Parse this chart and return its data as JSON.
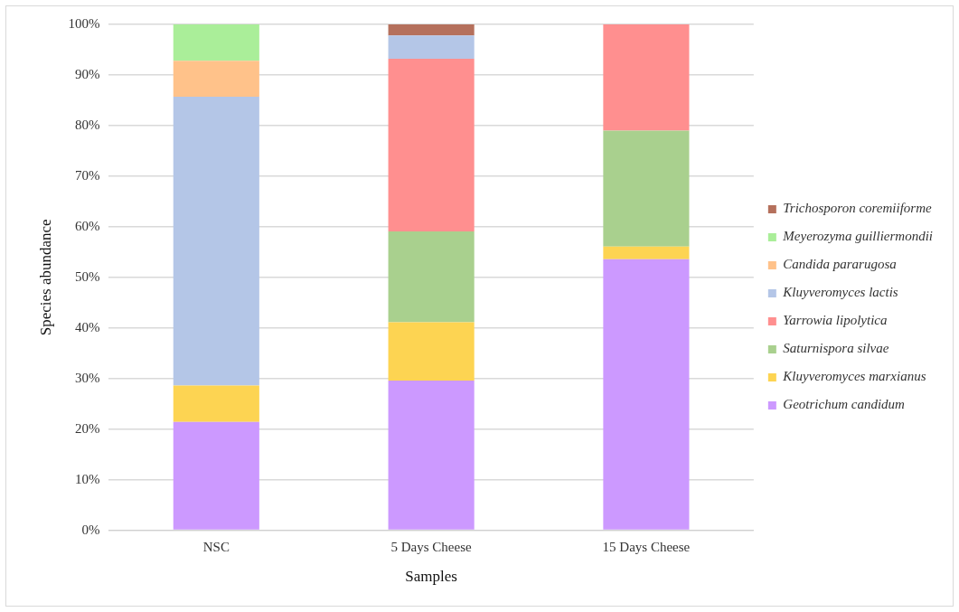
{
  "chart_data": {
    "type": "bar",
    "stacked": true,
    "xlabel": "Samples",
    "ylabel": "Species abundance",
    "categories": [
      "NSC",
      "5 Days Cheese",
      "15 Days Cheese"
    ],
    "series": [
      {
        "name": "Geotrichum candidum",
        "color": "#cc99ff",
        "values": [
          21.4,
          29.6,
          53.6
        ]
      },
      {
        "name": "Kluyveromyces marxianus",
        "color": "#fdd452",
        "values": [
          7.2,
          11.5,
          2.5
        ]
      },
      {
        "name": "Saturnispora silvae",
        "color": "#a9d08e",
        "values": [
          null,
          18,
          22.9
        ]
      },
      {
        "name": "Yarrowia lipolytica",
        "color": "#ff8f8f",
        "values": [
          null,
          34.1,
          21
        ]
      },
      {
        "name": "Kluyveromyces lactis",
        "color": "#b4c6e7",
        "values": [
          57.1,
          4.6,
          null
        ]
      },
      {
        "name": "Candida pararugosa",
        "color": "#ffc28a",
        "values": [
          7.1,
          null,
          null
        ]
      },
      {
        "name": "Meyerozyma guilliermondii",
        "color": "#aaee99",
        "values": [
          7.2,
          null,
          null
        ]
      },
      {
        "name": "Trichosporon coremiiforme",
        "color": "#b5705c",
        "values": [
          null,
          2.2,
          null
        ]
      }
    ],
    "ylim": [
      0,
      100
    ],
    "yticks": [
      {
        "value": 0,
        "label": "0%"
      },
      {
        "value": 10,
        "label": "10%"
      },
      {
        "value": 20,
        "label": "20%"
      },
      {
        "value": 30,
        "label": "30%"
      },
      {
        "value": 40,
        "label": "40%"
      },
      {
        "value": 50,
        "label": "50%"
      },
      {
        "value": 60,
        "label": "60%"
      },
      {
        "value": 70,
        "label": "70%"
      },
      {
        "value": 80,
        "label": "80%"
      },
      {
        "value": 90,
        "label": "90%"
      },
      {
        "value": 100,
        "label": "100%"
      }
    ],
    "grid": "y",
    "legend": "right"
  }
}
